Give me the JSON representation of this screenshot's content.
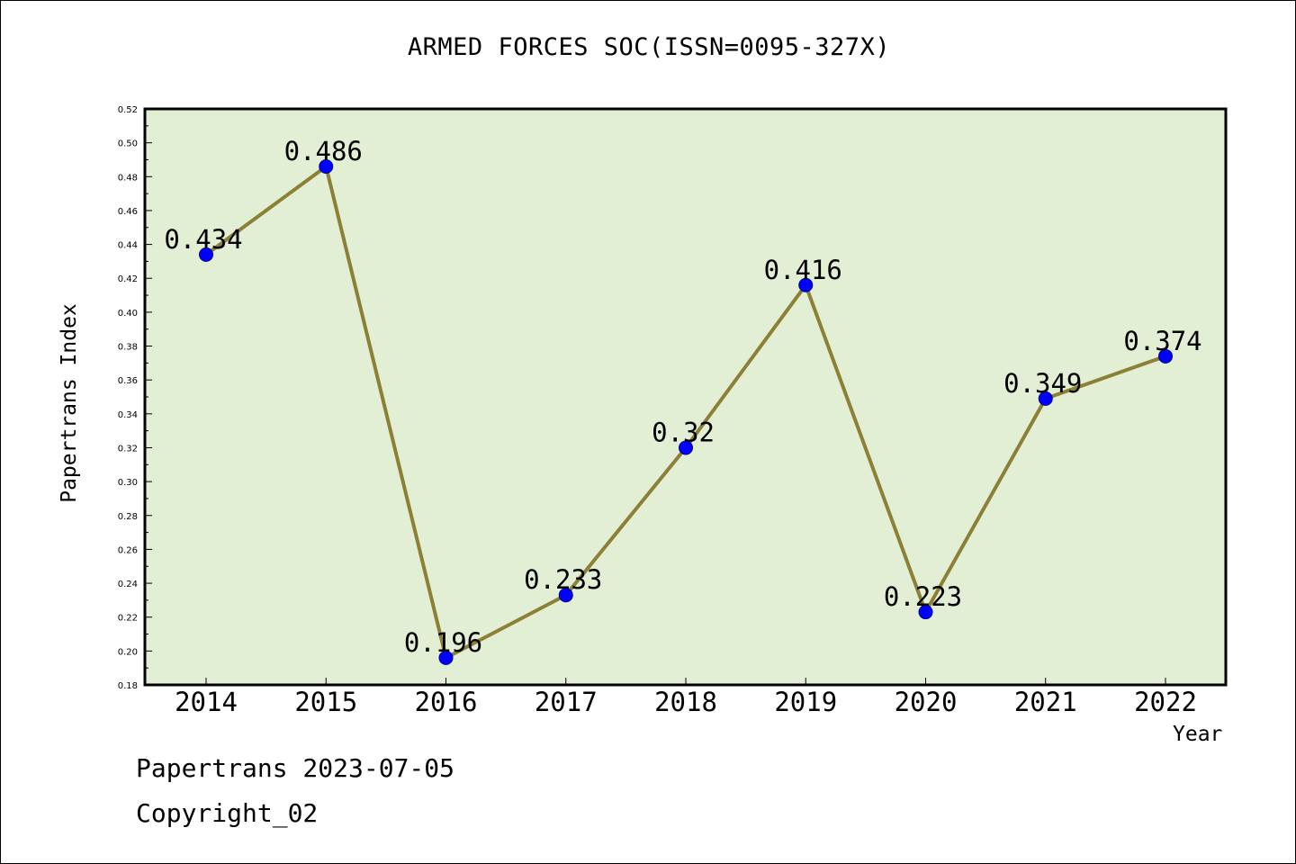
{
  "chart_data": {
    "type": "line",
    "title": "ARMED FORCES SOC(ISSN=0095-327X)",
    "xlabel": "Year",
    "ylabel": "Papertrans Index",
    "categories": [
      "2014",
      "2015",
      "2016",
      "2017",
      "2018",
      "2019",
      "2020",
      "2021",
      "2022"
    ],
    "series": [
      {
        "values": [
          0.434,
          0.486,
          0.196,
          0.233,
          0.32,
          0.416,
          0.223,
          0.349,
          0.374
        ],
        "data_labels": [
          "0.434",
          "0.486",
          "0.196",
          "0.233",
          "0.32",
          "0.416",
          "0.223",
          "0.349",
          "0.374"
        ]
      }
    ],
    "ylim": [
      0.18,
      0.52
    ],
    "yticks": [
      "0.18",
      "0.20",
      "0.22",
      "0.24",
      "0.26",
      "0.28",
      "0.30",
      "0.32",
      "0.34",
      "0.36",
      "0.38",
      "0.40",
      "0.42",
      "0.44",
      "0.46",
      "0.48",
      "0.50",
      "0.52"
    ],
    "grid": false,
    "colors": {
      "plot_background": "#e2efd5",
      "line": "#8b8035",
      "marker": "#0000ff"
    }
  },
  "footer": {
    "line1": "Papertrans 2023-07-05",
    "line2": "Copyright_02"
  }
}
